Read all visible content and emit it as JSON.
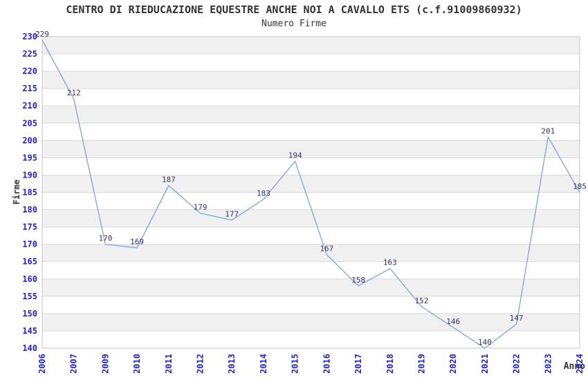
{
  "chart_data": {
    "type": "line",
    "title": "CENTRO DI RIEDUCAZIONE EQUESTRE ANCHE NOI A CAVALLO ETS (c.f.91009860932)",
    "subtitle": "Numero Firme",
    "xlabel": "Anno",
    "ylabel": "Firme",
    "categories": [
      "2006",
      "2007",
      "2009",
      "2010",
      "2011",
      "2012",
      "2013",
      "2014",
      "2015",
      "2016",
      "2017",
      "2018",
      "2019",
      "2020",
      "2021",
      "2022",
      "2023",
      "2024"
    ],
    "values": [
      229,
      212,
      170,
      169,
      187,
      179,
      177,
      183,
      194,
      167,
      158,
      163,
      152,
      146,
      140,
      147,
      201,
      185
    ],
    "ylim": [
      140,
      230
    ],
    "ytick_step": 5,
    "grid": true,
    "legend": "none",
    "colors": {
      "line": "#7faade",
      "tick_label": "#2222cc",
      "data_label": "#333366",
      "title": "#333333",
      "band": "#f0f0f0",
      "gridline": "#d9d9d9",
      "border": "#c6c6c6",
      "background": "#ffffff"
    }
  }
}
